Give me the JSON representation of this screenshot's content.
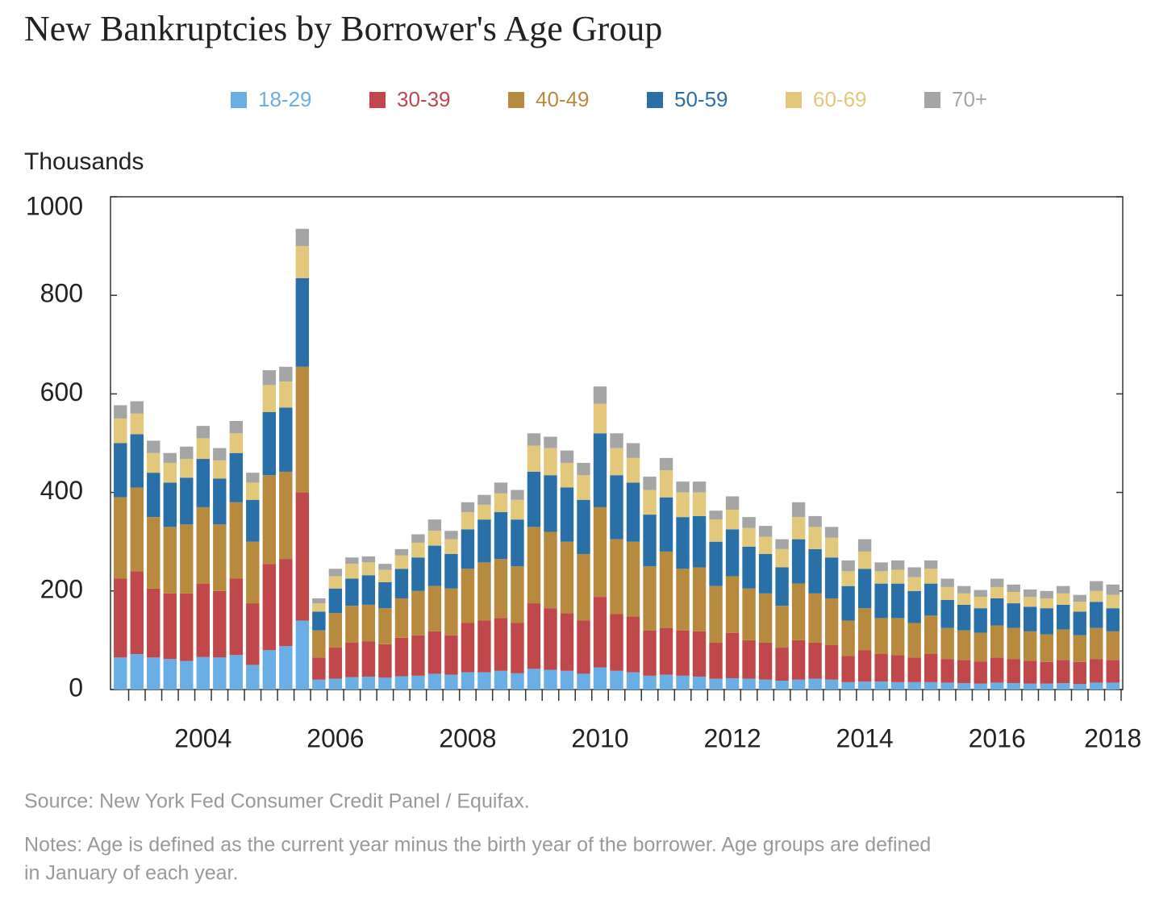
{
  "chart_data": {
    "type": "stacked_bar",
    "title": "New Bankruptcies by Borrower's Age Group",
    "y_label": "Thousands",
    "source": "Source: New York Fed Consumer Credit Panel / Equifax.",
    "notes": [
      "Notes: Age is defined as the current year minus the birth year of the borrower. Age groups are defined",
      "in January of each year."
    ],
    "categories": [
      null,
      null,
      null,
      null,
      null,
      "2004",
      null,
      null,
      null,
      null,
      null,
      null,
      null,
      "2006",
      null,
      null,
      null,
      null,
      null,
      null,
      null,
      "2008",
      null,
      null,
      null,
      null,
      null,
      null,
      null,
      "2010",
      null,
      null,
      null,
      null,
      null,
      null,
      null,
      "2012",
      null,
      null,
      null,
      null,
      null,
      null,
      null,
      "2014",
      null,
      null,
      null,
      null,
      null,
      null,
      null,
      "2016",
      null,
      null,
      null,
      null,
      null,
      null,
      "2018"
    ],
    "ylim": [
      0,
      1000
    ],
    "yticks": [
      0,
      200,
      400,
      600,
      800,
      1000
    ],
    "series": [
      {
        "name": "18-29",
        "color": "#6aaee6",
        "values": [
          65,
          72,
          65,
          62,
          58,
          66,
          65,
          70,
          50,
          80,
          88,
          140,
          20,
          22,
          25,
          26,
          24,
          27,
          28,
          32,
          30,
          35,
          35,
          38,
          33,
          42,
          40,
          38,
          32,
          45,
          38,
          35,
          28,
          30,
          28,
          26,
          22,
          23,
          22,
          20,
          18,
          20,
          22,
          20,
          15,
          16,
          16,
          15,
          15,
          15,
          14,
          13,
          12,
          14,
          13,
          12,
          12,
          13,
          11,
          14,
          14
        ]
      },
      {
        "name": "30-39",
        "color": "#c0474a",
        "values": [
          160,
          168,
          140,
          133,
          137,
          149,
          135,
          155,
          125,
          175,
          177,
          260,
          45,
          63,
          70,
          72,
          68,
          78,
          82,
          86,
          80,
          100,
          105,
          107,
          102,
          133,
          125,
          117,
          108,
          143,
          115,
          113,
          92,
          95,
          92,
          92,
          73,
          92,
          78,
          75,
          67,
          80,
          73,
          70,
          53,
          64,
          56,
          55,
          50,
          57,
          48,
          47,
          45,
          51,
          49,
          46,
          44,
          47,
          45,
          48,
          46
        ]
      },
      {
        "name": "40-49",
        "color": "#b88a3e",
        "values": [
          165,
          170,
          145,
          135,
          140,
          155,
          135,
          155,
          125,
          180,
          177,
          255,
          55,
          70,
          75,
          74,
          73,
          80,
          90,
          92,
          95,
          110,
          118,
          120,
          115,
          155,
          155,
          145,
          135,
          182,
          152,
          152,
          130,
          155,
          125,
          130,
          115,
          115,
          105,
          100,
          85,
          115,
          100,
          95,
          72,
          85,
          73,
          75,
          70,
          78,
          63,
          60,
          58,
          65,
          63,
          60,
          56,
          62,
          54,
          63,
          58
        ]
      },
      {
        "name": "50-59",
        "color": "#2a70a8",
        "values": [
          110,
          108,
          90,
          90,
          95,
          98,
          93,
          100,
          85,
          128,
          130,
          180,
          38,
          50,
          55,
          60,
          53,
          60,
          68,
          82,
          70,
          80,
          87,
          95,
          95,
          112,
          115,
          110,
          110,
          150,
          130,
          120,
          105,
          110,
          105,
          104,
          90,
          95,
          85,
          80,
          78,
          90,
          90,
          83,
          70,
          80,
          70,
          70,
          65,
          65,
          57,
          52,
          50,
          55,
          50,
          50,
          53,
          50,
          48,
          53,
          47
        ]
      },
      {
        "name": "60-69",
        "color": "#e3c77a",
        "values": [
          50,
          42,
          40,
          40,
          38,
          42,
          37,
          40,
          35,
          55,
          53,
          65,
          17,
          25,
          30,
          26,
          25,
          27,
          30,
          30,
          30,
          35,
          30,
          38,
          40,
          53,
          55,
          50,
          50,
          60,
          55,
          50,
          50,
          55,
          50,
          48,
          45,
          40,
          38,
          35,
          37,
          45,
          45,
          40,
          30,
          35,
          25,
          28,
          28,
          30,
          26,
          23,
          23,
          23,
          23,
          20,
          20,
          23,
          20,
          22,
          27
        ]
      },
      {
        "name": "70+",
        "color": "#a5a5a5",
        "values": [
          27,
          25,
          25,
          20,
          25,
          25,
          25,
          25,
          20,
          30,
          30,
          35,
          10,
          15,
          13,
          12,
          12,
          13,
          17,
          23,
          17,
          20,
          20,
          22,
          20,
          25,
          23,
          25,
          25,
          35,
          30,
          30,
          27,
          25,
          22,
          22,
          18,
          27,
          22,
          22,
          20,
          30,
          22,
          22,
          22,
          25,
          18,
          19,
          20,
          17,
          17,
          15,
          14,
          17,
          15,
          15,
          15,
          15,
          14,
          20,
          21
        ]
      }
    ]
  }
}
